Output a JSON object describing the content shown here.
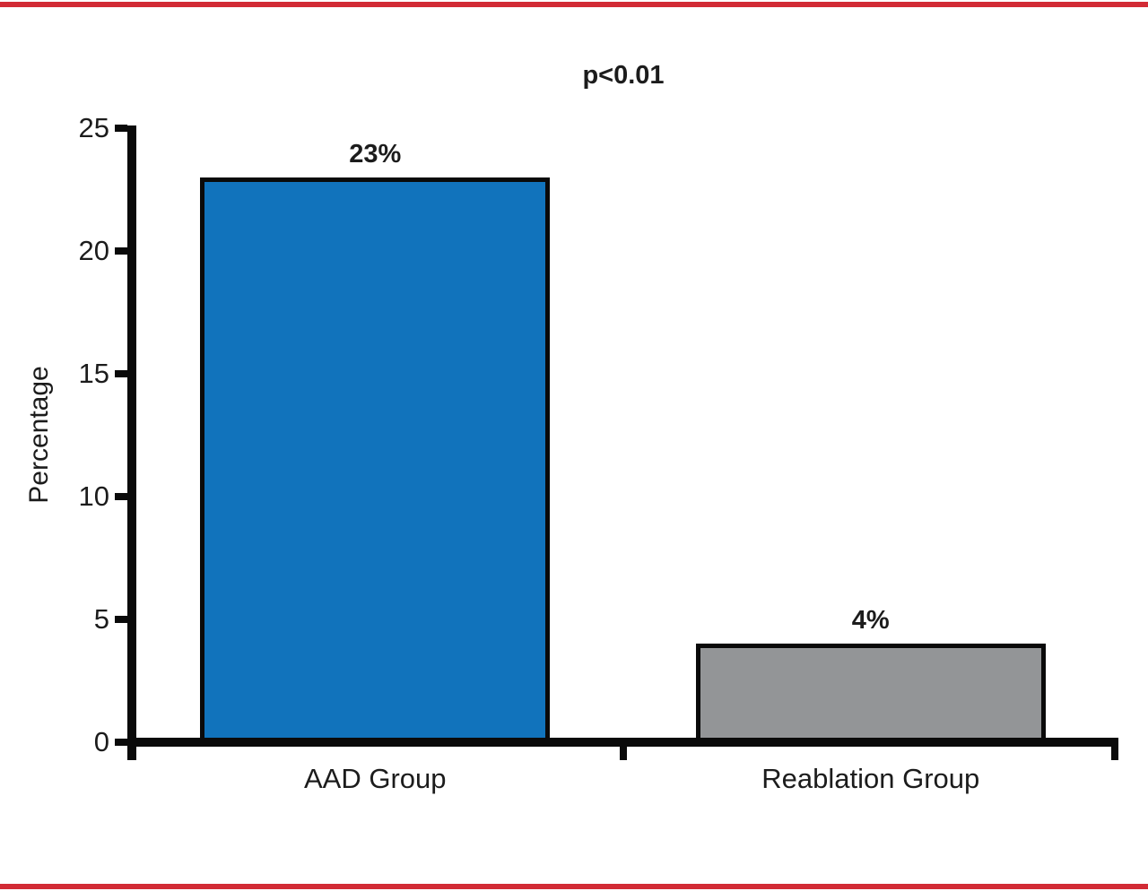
{
  "page": {
    "background": "#ffffff",
    "border_color": "#d22b35"
  },
  "chart_data": {
    "type": "bar",
    "title": "p<0.01",
    "categories": [
      "AAD Group",
      "Reablation Group"
    ],
    "values": [
      23,
      4
    ],
    "value_labels": [
      "23%",
      "4%"
    ],
    "bar_colors": [
      "#1173bc",
      "#939597"
    ],
    "bar_edge_color": "#0a0a0a",
    "xlabel": "",
    "ylabel": "Percentage",
    "ylim": [
      0,
      25
    ],
    "yticks": [
      0,
      5,
      10,
      15,
      20,
      25
    ],
    "grid": false,
    "legend": "none",
    "annotations": [
      "p<0.01"
    ]
  }
}
